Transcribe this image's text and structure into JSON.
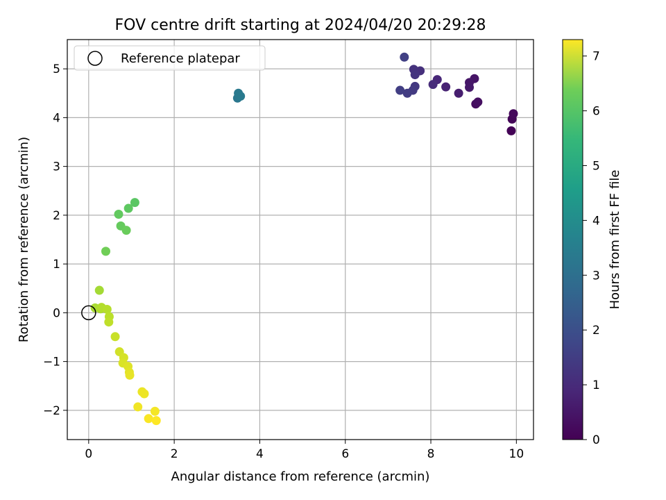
{
  "chart_data": {
    "type": "scatter",
    "title": "FOV centre drift starting at 2024/04/20 20:29:28",
    "xlabel": "Angular distance from reference (arcmin)",
    "ylabel": "Rotation from reference (arcmin)",
    "xlim": [
      -0.5,
      10.4
    ],
    "ylim": [
      -2.6,
      5.6
    ],
    "xticks": [
      "0",
      "2",
      "4",
      "6",
      "8",
      "10"
    ],
    "yticks": [
      "−2",
      "−1",
      "0",
      "1",
      "2",
      "3",
      "4",
      "5"
    ],
    "grid": true,
    "legend": {
      "position": "top-left",
      "entries": [
        "Reference platepar"
      ]
    },
    "reference_point": {
      "x": 0,
      "y": 0,
      "name": "Reference platepar"
    },
    "colorbar": {
      "label": "Hours from first FF file",
      "range": [
        0,
        7.3
      ],
      "ticks": [
        "0",
        "1",
        "2",
        "3",
        "4",
        "5",
        "6",
        "7"
      ],
      "colormap": "viridis"
    },
    "points": [
      {
        "x": 9.88,
        "y": 3.73,
        "hours": 0.05
      },
      {
        "x": 9.9,
        "y": 3.97,
        "hours": 0.1
      },
      {
        "x": 9.93,
        "y": 4.08,
        "hours": 0.15
      },
      {
        "x": 9.05,
        "y": 4.28,
        "hours": 0.25
      },
      {
        "x": 9.1,
        "y": 4.32,
        "hours": 0.3
      },
      {
        "x": 9.02,
        "y": 4.8,
        "hours": 0.4
      },
      {
        "x": 8.9,
        "y": 4.72,
        "hours": 0.45
      },
      {
        "x": 8.9,
        "y": 4.62,
        "hours": 0.5
      },
      {
        "x": 8.65,
        "y": 4.5,
        "hours": 0.6
      },
      {
        "x": 8.35,
        "y": 4.63,
        "hours": 0.7
      },
      {
        "x": 8.15,
        "y": 4.78,
        "hours": 0.8
      },
      {
        "x": 8.05,
        "y": 4.68,
        "hours": 0.9
      },
      {
        "x": 7.75,
        "y": 4.96,
        "hours": 1.0
      },
      {
        "x": 7.6,
        "y": 4.99,
        "hours": 1.05
      },
      {
        "x": 7.63,
        "y": 4.88,
        "hours": 1.1
      },
      {
        "x": 7.63,
        "y": 4.64,
        "hours": 1.2
      },
      {
        "x": 7.58,
        "y": 4.56,
        "hours": 1.25
      },
      {
        "x": 7.45,
        "y": 4.5,
        "hours": 1.3
      },
      {
        "x": 7.28,
        "y": 4.56,
        "hours": 1.35
      },
      {
        "x": 7.38,
        "y": 5.24,
        "hours": 1.4
      },
      {
        "x": 3.48,
        "y": 4.4,
        "hours": 2.9
      },
      {
        "x": 3.5,
        "y": 4.5,
        "hours": 2.95
      },
      {
        "x": 3.55,
        "y": 4.44,
        "hours": 3.0
      },
      {
        "x": 1.08,
        "y": 2.26,
        "hours": 5.4
      },
      {
        "x": 0.93,
        "y": 2.14,
        "hours": 5.45
      },
      {
        "x": 0.7,
        "y": 2.02,
        "hours": 5.5
      },
      {
        "x": 0.75,
        "y": 1.78,
        "hours": 5.55
      },
      {
        "x": 0.88,
        "y": 1.69,
        "hours": 5.6
      },
      {
        "x": 0.4,
        "y": 1.26,
        "hours": 5.7
      },
      {
        "x": 0.25,
        "y": 0.46,
        "hours": 6.3
      },
      {
        "x": 0.15,
        "y": 0.1,
        "hours": 6.35
      },
      {
        "x": 0.28,
        "y": 0.08,
        "hours": 6.4
      },
      {
        "x": 0.3,
        "y": 0.11,
        "hours": 6.45
      },
      {
        "x": 0.43,
        "y": 0.07,
        "hours": 6.5
      },
      {
        "x": 0.48,
        "y": -0.08,
        "hours": 6.55
      },
      {
        "x": 0.47,
        "y": -0.19,
        "hours": 6.6
      },
      {
        "x": 0.62,
        "y": -0.49,
        "hours": 6.7
      },
      {
        "x": 0.72,
        "y": -0.8,
        "hours": 6.8
      },
      {
        "x": 0.82,
        "y": -0.92,
        "hours": 6.85
      },
      {
        "x": 0.8,
        "y": -1.03,
        "hours": 6.9
      },
      {
        "x": 0.92,
        "y": -1.1,
        "hours": 6.95
      },
      {
        "x": 0.95,
        "y": -1.22,
        "hours": 7.0
      },
      {
        "x": 0.96,
        "y": -1.28,
        "hours": 7.05
      },
      {
        "x": 1.25,
        "y": -1.62,
        "hours": 7.1
      },
      {
        "x": 1.3,
        "y": -1.66,
        "hours": 7.12
      },
      {
        "x": 1.15,
        "y": -1.93,
        "hours": 7.15
      },
      {
        "x": 1.55,
        "y": -2.02,
        "hours": 7.2
      },
      {
        "x": 1.4,
        "y": -2.17,
        "hours": 7.25
      },
      {
        "x": 1.58,
        "y": -2.21,
        "hours": 7.3
      }
    ]
  }
}
